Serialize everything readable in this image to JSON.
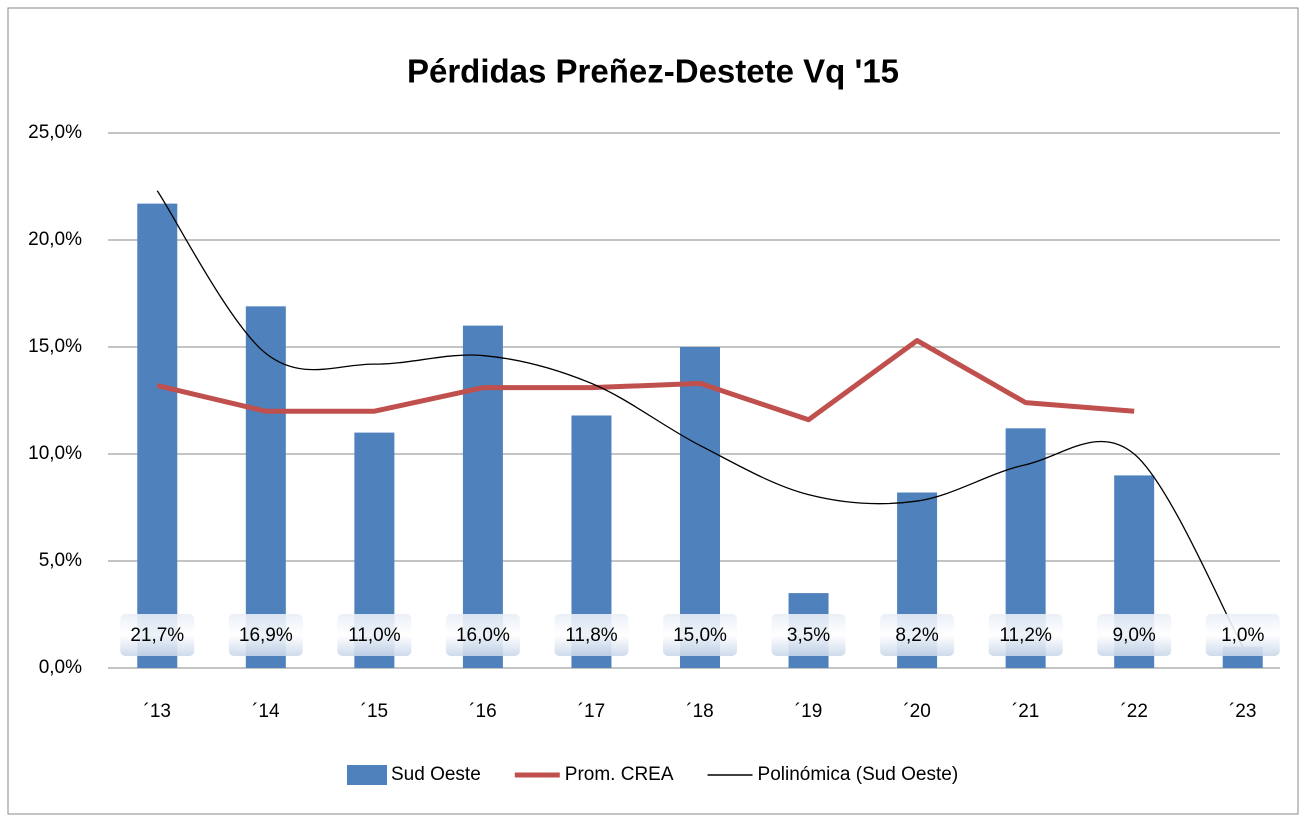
{
  "chart_data": {
    "type": "bar",
    "title": "Pérdidas Preñez-Destete Vq '15",
    "categories": [
      "´13",
      "´14",
      "´15",
      "´16",
      "´17",
      "´18",
      "´19",
      "´20",
      "´21",
      "´22",
      "´23"
    ],
    "series": [
      {
        "name": "Sud Oeste",
        "type": "bar",
        "color": "#4f81bd",
        "values": [
          21.7,
          16.9,
          11.0,
          16.0,
          11.8,
          15.0,
          3.5,
          8.2,
          11.2,
          9.0,
          1.0
        ],
        "value_labels": [
          "21,7%",
          "16,9%",
          "11,0%",
          "16,0%",
          "11,8%",
          "15,0%",
          "3,5%",
          "8,2%",
          "11,2%",
          "9,0%",
          "1,0%"
        ]
      },
      {
        "name": "Prom. CREA",
        "type": "line",
        "color": "#c0504d",
        "values": [
          13.2,
          12.0,
          12.0,
          13.1,
          13.1,
          13.3,
          11.6,
          15.3,
          12.4,
          12.0,
          null
        ]
      },
      {
        "name": "Polinómica (Sud Oeste)",
        "type": "line",
        "smooth": true,
        "color": "#000000",
        "values": [
          22.3,
          14.7,
          14.2,
          14.6,
          13.3,
          10.4,
          8.1,
          7.8,
          9.5,
          10.0,
          1.0
        ]
      }
    ],
    "ylim": [
      0,
      25
    ],
    "yticks": [
      {
        "value": 0,
        "label": "0,0%"
      },
      {
        "value": 5,
        "label": "5,0%"
      },
      {
        "value": 10,
        "label": "10,0%"
      },
      {
        "value": 15,
        "label": "15,0%"
      },
      {
        "value": 20,
        "label": "20,0%"
      },
      {
        "value": 25,
        "label": "25,0%"
      }
    ],
    "grid": true,
    "legend": "bottom"
  }
}
